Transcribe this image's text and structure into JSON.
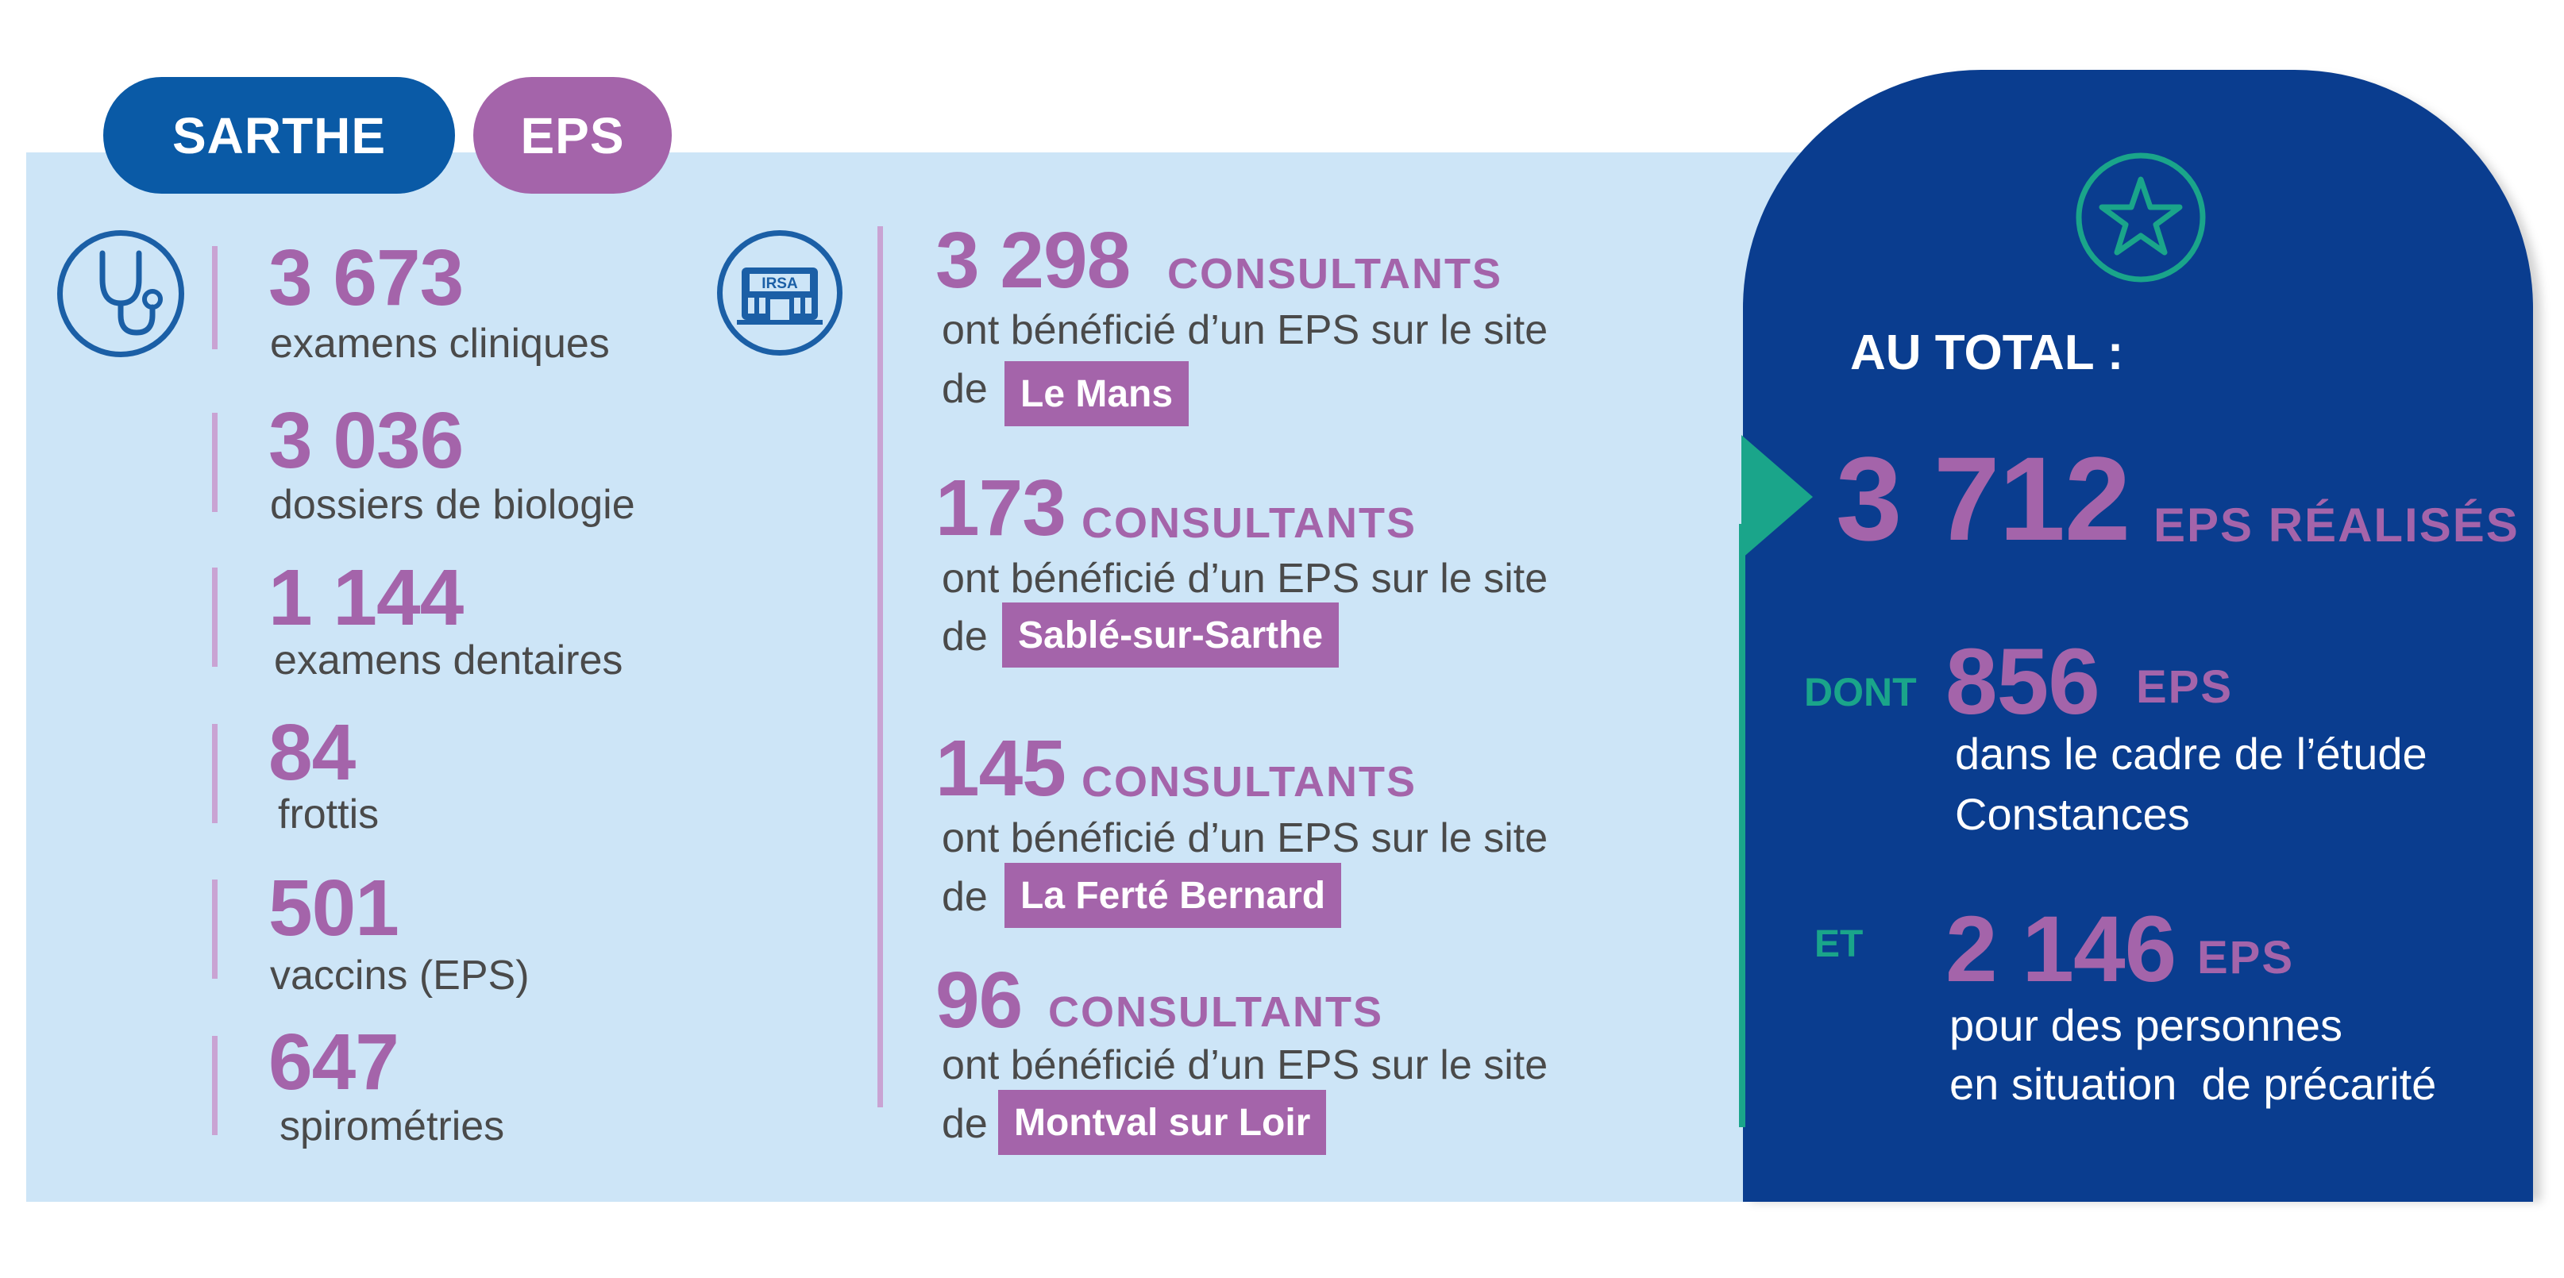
{
  "tags": {
    "region": "SARTHE",
    "program": "EPS"
  },
  "stats": [
    {
      "value": "3 673",
      "label": "examens cliniques"
    },
    {
      "value": "3 036",
      "label": "dossiers de biologie"
    },
    {
      "value": "1 144",
      "label": "examens dentaires"
    },
    {
      "value": "84",
      "label": "frottis"
    },
    {
      "value": "501",
      "label": "vaccins (EPS)"
    },
    {
      "value": "647",
      "label": "spirométries"
    }
  ],
  "building_icon_text": "IRSA",
  "sites": [
    {
      "value": "3 298",
      "unit": "CONSULTANTS",
      "text": "ont bénéficié d’un EPS sur le site",
      "de": "de",
      "site": "Le Mans"
    },
    {
      "value": "173",
      "unit": "CONSULTANTS",
      "text": "ont bénéficié d’un EPS sur le site",
      "de": "de",
      "site": "Sablé-sur-Sarthe"
    },
    {
      "value": "145",
      "unit": "CONSULTANTS",
      "text": "ont bénéficié d’un EPS sur le site",
      "de": "de",
      "site": "La Ferté Bernard"
    },
    {
      "value": "96",
      "unit": "CONSULTANTS",
      "text": "ont bénéficié d’un EPS sur le site",
      "de": "de",
      "site": "Montval sur Loir"
    }
  ],
  "total": {
    "heading": "AU TOTAL :",
    "value": "3 712",
    "unit": "EPS RÉALISÉS",
    "dont_label": "DONT",
    "dont_value": "856",
    "dont_unit": "EPS",
    "dont_text_1": "dans le cadre de l’étude",
    "dont_text_2": "Constances",
    "et_label": "ET",
    "et_value": "2 146",
    "et_unit": "EPS",
    "et_text_1": "pour des personnes",
    "et_text_2": "en situation  de précarité"
  },
  "colors": {
    "purple": "#a464aa",
    "blue": "#0a5aa6",
    "dark_blue": "#0a3d8f",
    "light_blue": "#cde5f7",
    "green": "#1aa58a"
  },
  "icons": [
    "stethoscope-icon",
    "building-icon",
    "star-icon"
  ]
}
